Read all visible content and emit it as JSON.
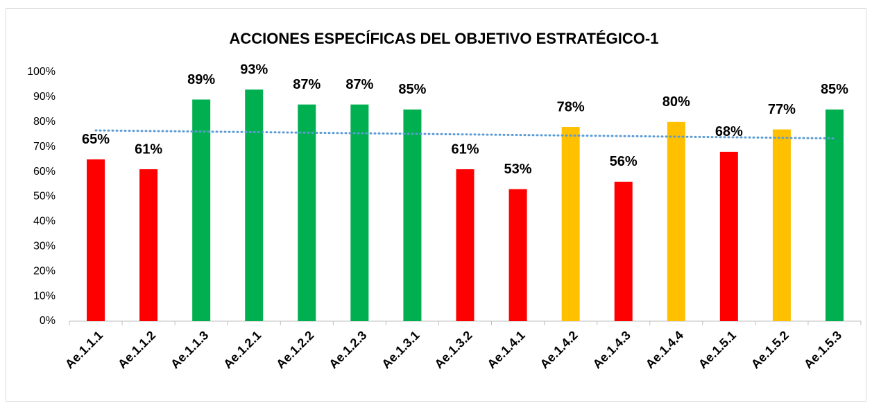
{
  "chart_data": {
    "type": "bar",
    "title": "ACCIONES ESPECÍFICAS DEL OBJETIVO ESTRATÉGICO-1",
    "categories": [
      "Ae.1.1.1",
      "Ae.1.1.2",
      "Ae.1.1.3",
      "Ae.1.2.1",
      "Ae.1.2.2",
      "Ae.1.2.3",
      "Ae.1.3.1",
      "Ae.1.3.2",
      "Ae.1.4.1",
      "Ae.1.4.2",
      "Ae.1.4.3",
      "Ae.1.4.4",
      "Ae.1.5.1",
      "Ae.1.5.2",
      "Ae.1.5.3"
    ],
    "values": [
      65,
      61,
      89,
      93,
      87,
      87,
      85,
      61,
      53,
      78,
      56,
      80,
      68,
      77,
      85
    ],
    "value_labels": [
      "65%",
      "61%",
      "89%",
      "93%",
      "87%",
      "87%",
      "85%",
      "61%",
      "53%",
      "78%",
      "56%",
      "80%",
      "68%",
      "77%",
      "85%"
    ],
    "colors": [
      "#ff0000",
      "#ff0000",
      "#00b050",
      "#00b050",
      "#00b050",
      "#00b050",
      "#00b050",
      "#ff0000",
      "#ff0000",
      "#ffc000",
      "#ff0000",
      "#ffc000",
      "#ff0000",
      "#ffc000",
      "#00b050"
    ],
    "ylim": [
      0,
      100
    ],
    "yticks": [
      {
        "value": 0,
        "label": "0%"
      },
      {
        "value": 10,
        "label": "10%"
      },
      {
        "value": 20,
        "label": "20%"
      },
      {
        "value": 30,
        "label": "30%"
      },
      {
        "value": 40,
        "label": "40%"
      },
      {
        "value": 50,
        "label": "50%"
      },
      {
        "value": 60,
        "label": "60%"
      },
      {
        "value": 70,
        "label": "70%"
      },
      {
        "value": 80,
        "label": "80%"
      },
      {
        "value": 90,
        "label": "90%"
      },
      {
        "value": 100,
        "label": "100%"
      }
    ],
    "grid": false,
    "trendline": "linear",
    "trendline_color": "#5b9bd5"
  }
}
